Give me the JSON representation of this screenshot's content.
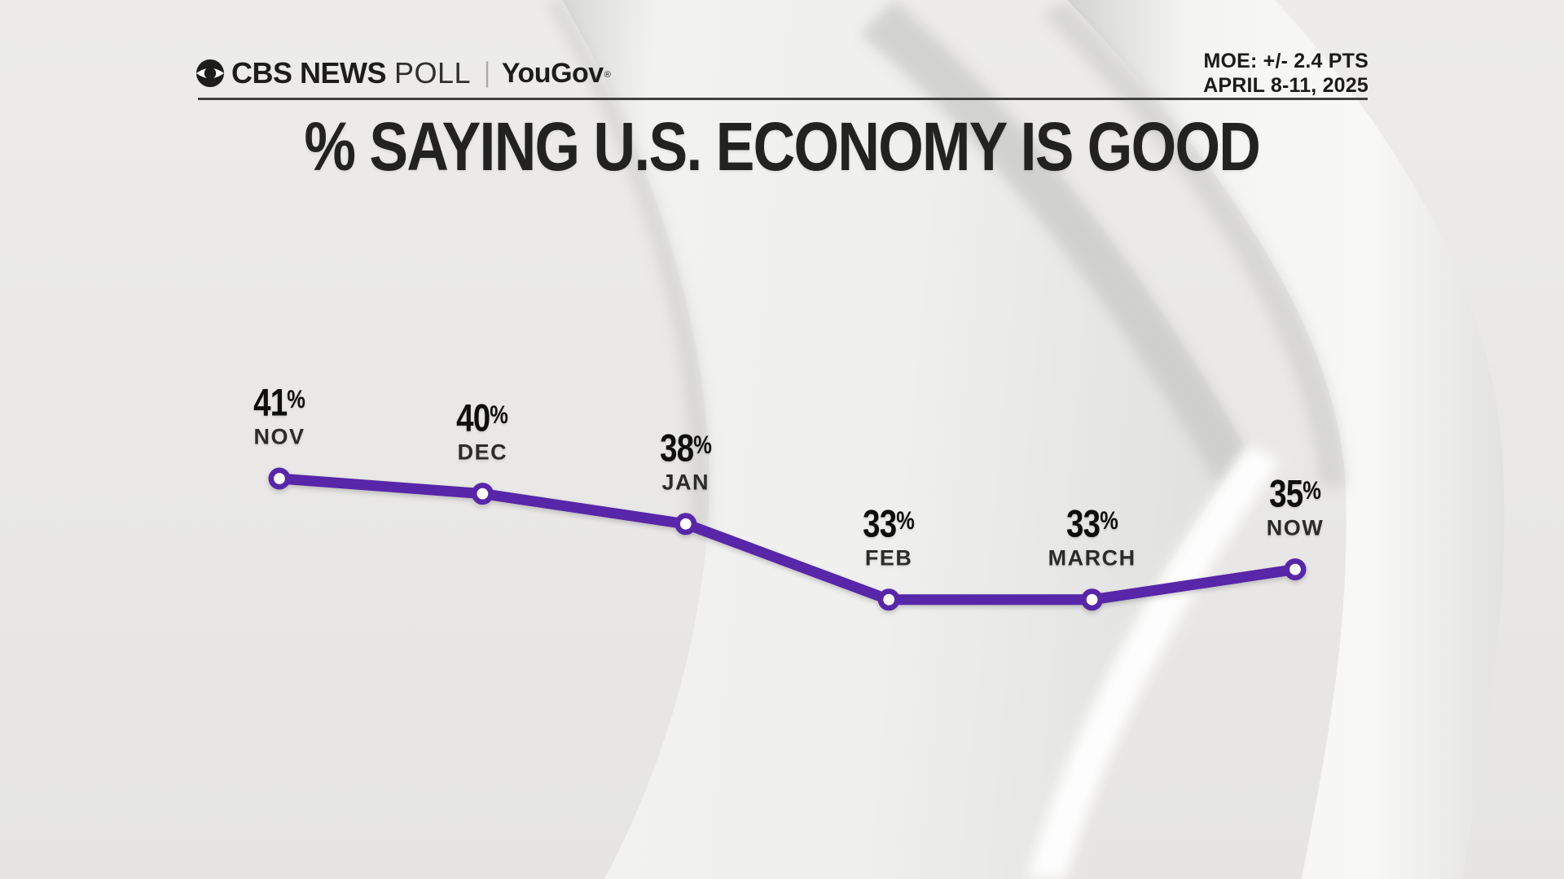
{
  "header": {
    "logo": {
      "cbs_news": "CBS NEWS",
      "poll": "POLL",
      "separator": "|",
      "partner": "YouGov",
      "registered": "®"
    },
    "moe_line1": "MOE: +/- 2.4 PTS",
    "moe_line2": "APRIL 8-11, 2025"
  },
  "title": "% SAYING U.S. ECONOMY IS GOOD",
  "chart_data": {
    "type": "line",
    "title": "% SAYING U.S. ECONOMY IS GOOD",
    "categories": [
      "NOV",
      "DEC",
      "JAN",
      "FEB",
      "MARCH",
      "NOW"
    ],
    "values": [
      41,
      40,
      38,
      33,
      33,
      35
    ],
    "labels": [
      "41%",
      "40%",
      "38%",
      "33%",
      "33%",
      "35%"
    ],
    "xlabel": "",
    "ylabel": "",
    "ylim": [
      28,
      45
    ],
    "grid": false,
    "legend": false,
    "line_color": "#5826A8",
    "marker_fill": "#ffffff",
    "value_label_color": "#0e0e0c",
    "category_label_color": "#2b2b29"
  },
  "colors": {
    "background": "#e9e8e6",
    "accent_purple": "#5826A8",
    "text_dark": "#1d1d1b",
    "rule": "#3f3f3d"
  }
}
